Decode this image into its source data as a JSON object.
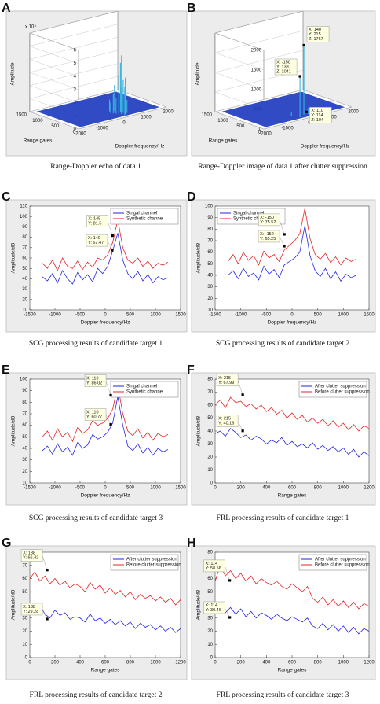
{
  "chart_data": [
    {
      "type": "surface3d",
      "panel_label": "A",
      "caption": "Range-Doppler echo of data 1",
      "xlabel": "Doppler frequency/Hz",
      "ylabel": "Range gates",
      "zlabel": "Amplitude",
      "z_multiplier": "x 10⁴",
      "xlim": [
        -2000,
        2000
      ],
      "xticks": [
        -2000,
        -1000,
        0,
        1000,
        2000
      ],
      "ylim": [
        0,
        1500
      ],
      "yticks": [
        0,
        500,
        1000,
        1500
      ],
      "zlim": [
        0,
        60000
      ],
      "zticks": [
        0,
        {
          "value": 10000,
          "label": "1"
        },
        {
          "value": 20000,
          "label": "2"
        },
        {
          "value": 30000,
          "label": "3"
        },
        {
          "value": 40000,
          "label": "4"
        },
        {
          "value": 50000,
          "label": "5"
        },
        {
          "value": 60000,
          "label": "6"
        }
      ],
      "surface_color": "#1f3cc0",
      "spikes": {
        "color": "#35b5e0",
        "x": [
          50,
          100,
          150,
          200,
          250,
          300,
          350,
          400,
          450,
          500,
          250,
          350,
          150,
          600
        ],
        "y": [
          400,
          350,
          300,
          250,
          200,
          450,
          300,
          250,
          350,
          200,
          100,
          150,
          500,
          300
        ],
        "z": [
          8000,
          15000,
          12000,
          30000,
          45000,
          20000,
          38000,
          25000,
          18000,
          10000,
          22000,
          28000,
          9000,
          6000
        ]
      },
      "annotations": []
    },
    {
      "type": "surface3d",
      "panel_label": "B",
      "caption": "Range-Doppler image of data 1 after clutter suppression",
      "xlabel": "Doppler frequency/Hz",
      "ylabel": "Range gates",
      "zlabel": "Amplitude",
      "xlim": [
        -2000,
        2000
      ],
      "xticks": [
        -2000,
        -1000,
        0,
        1000,
        2000
      ],
      "ylim": [
        0,
        1500
      ],
      "yticks": [
        0,
        500,
        1000,
        1500
      ],
      "zlim": [
        0,
        2000
      ],
      "zticks": [
        0,
        500,
        1000,
        1500,
        2000
      ],
      "surface_color": "#1f3cc0",
      "spikes": {
        "color": "#35b5e0",
        "x": [
          140,
          -150,
          300,
          500,
          -300,
          700
        ],
        "y": [
          215,
          138,
          200,
          150,
          300,
          250
        ],
        "z": [
          1767,
          1041,
          150,
          120,
          90,
          110
        ]
      },
      "annotations": [
        {
          "x": 140,
          "y": 215,
          "z": 1767,
          "labels": [
            "X: 140",
            "Y: 215",
            "Z: 1767"
          ]
        },
        {
          "x": -150,
          "y": 138,
          "z": 1041,
          "labels": [
            "X: -150",
            "Y: 138",
            "Z: 1041"
          ]
        },
        {
          "x": 110,
          "y": 114,
          "z": 104,
          "labels": [
            "X: 110",
            "Y: 114",
            "Z: 104"
          ]
        }
      ]
    },
    {
      "type": "line",
      "panel_label": "C",
      "caption": "SCG processing results of candidate target 1",
      "xlabel": "Doppler frequency/Hz",
      "ylabel": "Amplitude/dB",
      "legend": "upper right",
      "xlim": [
        -1500,
        1500
      ],
      "xticks": [
        -1500,
        -1000,
        -500,
        0,
        500,
        1000,
        1500
      ],
      "ylim": [
        10,
        110
      ],
      "yticks": [
        10,
        20,
        30,
        40,
        50,
        60,
        70,
        80,
        90,
        100,
        110
      ],
      "x": [
        -1250,
        -1150,
        -1050,
        -950,
        -850,
        -750,
        -650,
        -550,
        -450,
        -350,
        -250,
        -150,
        -50,
        50,
        150,
        250,
        350,
        450,
        550,
        650,
        750,
        850,
        950,
        1050,
        1150,
        1250
      ],
      "series": [
        {
          "name": "Singal channel",
          "color": "#2323e6",
          "values": [
            42,
            38,
            45,
            36,
            48,
            40,
            35,
            46,
            39,
            44,
            37,
            50,
            45,
            52,
            67,
            84,
            58,
            45,
            40,
            47,
            38,
            44,
            36,
            42,
            39,
            41
          ]
        },
        {
          "name": "Synthetic channel",
          "color": "#e62323",
          "values": [
            55,
            50,
            58,
            48,
            60,
            52,
            50,
            57,
            49,
            56,
            51,
            60,
            58,
            63,
            75,
            97,
            70,
            58,
            55,
            60,
            52,
            57,
            50,
            55,
            53,
            56
          ]
        }
      ],
      "annotations": [
        {
          "x": 145,
          "y": 81.5,
          "labels": [
            "X: 145",
            "Y: 81.5"
          ]
        },
        {
          "x": 140,
          "y": 67.47,
          "labels": [
            "X: 140",
            "Y: 67.47"
          ]
        }
      ]
    },
    {
      "type": "line",
      "panel_label": "D",
      "caption": "SCG processing results of candidate target 2",
      "xlabel": "Doppler frequency/Hz",
      "ylabel": "Amplitude/dB",
      "legend": "upper left",
      "xlim": [
        -1500,
        1500
      ],
      "xticks": [
        -1500,
        -1000,
        -500,
        0,
        500,
        1000,
        1500
      ],
      "ylim": [
        10,
        100
      ],
      "yticks": [
        10,
        20,
        30,
        40,
        50,
        60,
        70,
        80,
        90,
        100
      ],
      "x": [
        -1250,
        -1150,
        -1050,
        -950,
        -850,
        -750,
        -650,
        -550,
        -450,
        -350,
        -250,
        -150,
        -50,
        50,
        150,
        250,
        350,
        450,
        550,
        650,
        750,
        850,
        950,
        1050,
        1150,
        1250
      ],
      "series": [
        {
          "name": "Singal channel",
          "color": "#2323e6",
          "values": [
            40,
            44,
            37,
            46,
            39,
            42,
            36,
            48,
            41,
            45,
            38,
            49,
            52,
            55,
            60,
            83,
            57,
            44,
            39,
            46,
            37,
            43,
            35,
            41,
            38,
            40
          ]
        },
        {
          "name": "Synthetic channel",
          "color": "#e62323",
          "values": [
            52,
            58,
            50,
            60,
            53,
            57,
            49,
            61,
            55,
            58,
            52,
            62,
            66,
            70,
            76,
            98,
            72,
            58,
            54,
            59,
            51,
            56,
            49,
            55,
            52,
            54
          ]
        }
      ],
      "annotations": [
        {
          "x": -150,
          "y": 75.52,
          "labels": [
            "X: -150",
            "Y: 75.52"
          ]
        },
        {
          "x": -152,
          "y": 65.25,
          "labels": [
            "X: -152",
            "Y: 65.25"
          ]
        }
      ]
    },
    {
      "type": "line",
      "panel_label": "E",
      "caption": "SCG processing results of candidate target 3",
      "xlabel": "Doppler frequency/Hz",
      "ylabel": "Amplitude/dB",
      "legend": "upper right",
      "xlim": [
        -1500,
        1500
      ],
      "xticks": [
        -1500,
        -1000,
        -500,
        0,
        500,
        1000,
        1500
      ],
      "ylim": [
        10,
        100
      ],
      "yticks": [
        10,
        20,
        30,
        40,
        50,
        60,
        70,
        80,
        90,
        100
      ],
      "x": [
        -1250,
        -1150,
        -1050,
        -950,
        -850,
        -750,
        -650,
        -550,
        -450,
        -350,
        -250,
        -150,
        -50,
        50,
        150,
        250,
        350,
        450,
        550,
        650,
        750,
        850,
        950,
        1050,
        1150,
        1250
      ],
      "series": [
        {
          "name": "Singal channel",
          "color": "#2323e6",
          "values": [
            38,
            42,
            35,
            44,
            37,
            41,
            34,
            45,
            40,
            43,
            52,
            48,
            50,
            54,
            62,
            85,
            60,
            42,
            38,
            44,
            36,
            41,
            34,
            40,
            37,
            39
          ]
        },
        {
          "name": "Synthetic channel",
          "color": "#e62323",
          "values": [
            50,
            55,
            47,
            57,
            50,
            54,
            46,
            58,
            53,
            56,
            64,
            60,
            62,
            66,
            74,
            95,
            70,
            55,
            51,
            57,
            49,
            54,
            47,
            53,
            50,
            52
          ]
        }
      ],
      "annotations": [
        {
          "x": 110,
          "y": 86.02,
          "labels": [
            "X: 110",
            "Y: 86.02"
          ]
        },
        {
          "x": 110,
          "y": 60.77,
          "labels": [
            "X: 110",
            "Y: 60.77"
          ]
        }
      ]
    },
    {
      "type": "line",
      "panel_label": "F",
      "caption": "FRL processing results of candidate target 1",
      "xlabel": "Range gates",
      "ylabel": "Amplitude/dB",
      "legend": "upper right",
      "xlim": [
        0,
        1200
      ],
      "xticks": [
        0,
        200,
        400,
        600,
        800,
        1000,
        1200
      ],
      "ylim": [
        0,
        80
      ],
      "yticks": [
        0,
        10,
        20,
        30,
        40,
        50,
        60,
        70,
        80
      ],
      "x": [
        0,
        40,
        80,
        120,
        160,
        200,
        240,
        280,
        320,
        360,
        400,
        440,
        480,
        520,
        560,
        600,
        640,
        680,
        720,
        760,
        800,
        840,
        880,
        920,
        960,
        1000,
        1040,
        1080,
        1120,
        1160,
        1200
      ],
      "series": [
        {
          "name": "After clutter suppression",
          "color": "#2323e6",
          "values": [
            38,
            40,
            36,
            42,
            39,
            35,
            37,
            33,
            36,
            34,
            30,
            33,
            31,
            35,
            29,
            32,
            28,
            30,
            27,
            31,
            26,
            29,
            25,
            28,
            24,
            27,
            22,
            26,
            20,
            24,
            21
          ]
        },
        {
          "name": "Before clutter suppression",
          "color": "#e62323",
          "values": [
            60,
            64,
            58,
            66,
            62,
            63,
            59,
            61,
            57,
            60,
            55,
            58,
            53,
            56,
            50,
            54,
            49,
            52,
            47,
            50,
            46,
            49,
            44,
            48,
            43,
            46,
            41,
            45,
            40,
            44,
            42
          ]
        }
      ],
      "annotations": [
        {
          "x": 215,
          "y": 67.99,
          "labels": [
            "X: 215",
            "Y: 67.99"
          ]
        },
        {
          "x": 215,
          "y": 40.16,
          "labels": [
            "X: 215",
            "Y: 40.16"
          ]
        }
      ]
    },
    {
      "type": "line",
      "panel_label": "G",
      "caption": "FRL processing results of candidate target 2",
      "xlabel": "Range gates",
      "ylabel": "Amplitude/dB",
      "legend": "upper right",
      "xlim": [
        0,
        1200
      ],
      "xticks": [
        0,
        200,
        400,
        600,
        800,
        1000,
        1200
      ],
      "ylim": [
        0,
        80
      ],
      "yticks": [
        0,
        10,
        20,
        30,
        40,
        50,
        60,
        70,
        80
      ],
      "x": [
        0,
        40,
        80,
        120,
        160,
        200,
        240,
        280,
        320,
        360,
        400,
        440,
        480,
        520,
        560,
        600,
        640,
        680,
        720,
        760,
        800,
        840,
        880,
        920,
        960,
        1000,
        1040,
        1080,
        1120,
        1160,
        1200
      ],
      "series": [
        {
          "name": "After clutter suppression",
          "color": "#2323e6",
          "values": [
            38,
            35,
            40,
            33,
            30,
            36,
            32,
            34,
            29,
            31,
            30,
            27,
            33,
            28,
            30,
            26,
            29,
            25,
            28,
            24,
            27,
            22,
            26,
            23,
            25,
            21,
            24,
            20,
            23,
            19,
            22
          ]
        },
        {
          "name": "Before clutter suppression",
          "color": "#e62323",
          "values": [
            60,
            65,
            58,
            62,
            56,
            60,
            55,
            58,
            53,
            56,
            54,
            50,
            57,
            52,
            55,
            49,
            53,
            48,
            51,
            46,
            50,
            44,
            48,
            45,
            47,
            43,
            46,
            42,
            45,
            40,
            44
          ]
        }
      ],
      "annotations": [
        {
          "x": 138,
          "y": 66.42,
          "labels": [
            "X: 138",
            "Y: 66.42"
          ]
        },
        {
          "x": 138,
          "y": 29.28,
          "labels": [
            "X: 138",
            "Y: 29.28"
          ]
        }
      ]
    },
    {
      "type": "line",
      "panel_label": "H",
      "caption": "FRL processing results of candidate target 3",
      "xlabel": "Range gates",
      "ylabel": "Amplitude/dB",
      "legend": "upper right",
      "xlim": [
        0,
        1200
      ],
      "xticks": [
        0,
        200,
        400,
        600,
        800,
        1000,
        1200
      ],
      "ylim": [
        0,
        80
      ],
      "yticks": [
        0,
        10,
        20,
        30,
        40,
        50,
        60,
        70,
        80
      ],
      "x": [
        0,
        40,
        80,
        120,
        160,
        200,
        240,
        280,
        320,
        360,
        400,
        440,
        480,
        520,
        560,
        600,
        640,
        680,
        720,
        760,
        800,
        840,
        880,
        920,
        960,
        1000,
        1040,
        1080,
        1120,
        1160,
        1200
      ],
      "series": [
        {
          "name": "After clutter suppression",
          "color": "#2323e6",
          "values": [
            36,
            40,
            34,
            38,
            33,
            37,
            31,
            35,
            30,
            34,
            32,
            29,
            33,
            30,
            28,
            31,
            29,
            27,
            30,
            24,
            22,
            26,
            21,
            25,
            20,
            24,
            19,
            23,
            18,
            22,
            20
          ]
        },
        {
          "name": "Before clutter suppression",
          "color": "#e62323",
          "values": [
            58,
            70,
            62,
            66,
            60,
            64,
            58,
            62,
            56,
            60,
            57,
            55,
            58,
            54,
            52,
            56,
            53,
            50,
            54,
            45,
            42,
            46,
            40,
            44,
            39,
            43,
            38,
            42,
            37,
            41,
            39
          ]
        }
      ],
      "annotations": [
        {
          "x": 114,
          "y": 58.56,
          "labels": [
            "X: 114",
            "Y: 58.56"
          ]
        },
        {
          "x": 114,
          "y": 30.46,
          "labels": [
            "X: 114",
            "Y: 30.46"
          ]
        }
      ]
    }
  ]
}
